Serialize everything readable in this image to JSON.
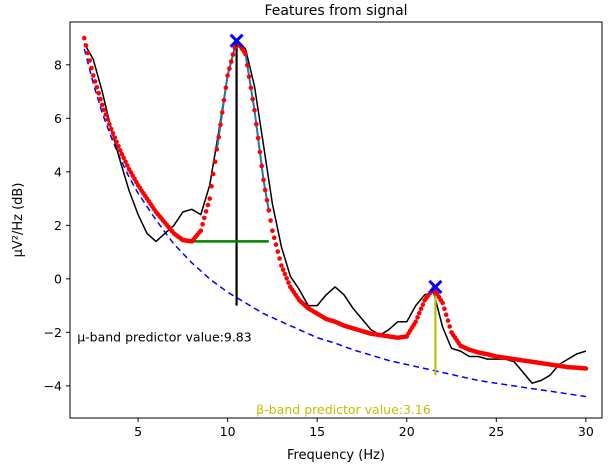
{
  "chart_data": {
    "type": "line",
    "title": "Features from signal",
    "xlabel": "Frequency (Hz)",
    "ylabel": "μV²/Hz (dB)",
    "xlim": [
      1.2,
      30.9
    ],
    "ylim": [
      -5.2,
      9.6
    ],
    "xticks": [
      5,
      10,
      15,
      20,
      25,
      30
    ],
    "yticks": [
      -4,
      -2,
      0,
      2,
      4,
      6,
      8
    ],
    "grid": false,
    "series": [
      {
        "role": "measured-spectrum",
        "color": "#000000",
        "x": [
          2.0,
          2.5,
          3.0,
          3.5,
          4.0,
          4.5,
          5.0,
          5.5,
          6.0,
          6.5,
          7.0,
          7.5,
          8.0,
          8.5,
          9.0,
          9.5,
          10.0,
          10.5,
          11.0,
          11.5,
          12.0,
          12.5,
          13.0,
          13.5,
          14.0,
          14.5,
          15.0,
          15.5,
          16.0,
          16.5,
          17.0,
          17.5,
          18.0,
          18.5,
          19.0,
          19.5,
          20.0,
          20.5,
          21.0,
          21.5,
          22.0,
          22.5,
          23.0,
          23.5,
          24.0,
          24.5,
          25.0,
          25.5,
          26.0,
          26.5,
          27.0,
          27.5,
          28.0,
          28.5,
          29.0,
          29.5,
          30.0
        ],
        "values": [
          8.8,
          8.2,
          7.0,
          5.6,
          4.4,
          3.3,
          2.4,
          1.7,
          1.4,
          1.7,
          2.0,
          2.5,
          2.6,
          2.4,
          3.5,
          5.5,
          7.6,
          8.9,
          8.6,
          7.2,
          5.0,
          2.8,
          1.2,
          0.1,
          -0.4,
          -1.0,
          -1.0,
          -0.6,
          -0.3,
          -0.6,
          -1.1,
          -1.5,
          -1.9,
          -2.1,
          -1.9,
          -1.6,
          -1.6,
          -1.0,
          -0.6,
          -0.5,
          -1.8,
          -2.6,
          -2.7,
          -2.9,
          -2.9,
          -3.0,
          -3.0,
          -3.0,
          -3.1,
          -3.5,
          -3.9,
          -3.8,
          -3.6,
          -3.2,
          -3.0,
          -2.8,
          -2.7
        ]
      },
      {
        "role": "fitted-model",
        "color": "#ff0000",
        "x": [
          2.0,
          2.5,
          3.0,
          3.5,
          4.0,
          4.5,
          5.0,
          5.5,
          6.0,
          6.5,
          7.0,
          7.5,
          8.0,
          8.5,
          9.0,
          9.5,
          10.0,
          10.5,
          11.0,
          11.5,
          12.0,
          12.5,
          13.0,
          13.5,
          14.0,
          14.5,
          15.0,
          15.5,
          16.0,
          16.5,
          17.0,
          17.5,
          18.0,
          18.5,
          19.0,
          19.5,
          20.0,
          20.5,
          21.0,
          21.5,
          22.0,
          22.5,
          23.0,
          23.5,
          24.0,
          24.5,
          25.0,
          25.5,
          26.0,
          26.5,
          27.0,
          27.5,
          28.0,
          28.5,
          29.0,
          29.5,
          30.0
        ],
        "values": [
          9.0,
          7.6,
          6.5,
          5.6,
          4.8,
          4.1,
          3.5,
          3.0,
          2.5,
          2.1,
          1.7,
          1.45,
          1.4,
          1.8,
          3.0,
          5.3,
          7.6,
          8.9,
          8.4,
          6.3,
          3.7,
          1.8,
          0.5,
          -0.3,
          -0.8,
          -1.1,
          -1.3,
          -1.5,
          -1.6,
          -1.75,
          -1.85,
          -1.95,
          -2.05,
          -2.1,
          -2.15,
          -2.2,
          -2.15,
          -1.6,
          -0.8,
          -0.35,
          -0.9,
          -2.0,
          -2.5,
          -2.65,
          -2.75,
          -2.82,
          -2.9,
          -2.95,
          -3.0,
          -3.05,
          -3.1,
          -3.15,
          -3.2,
          -3.25,
          -3.3,
          -3.32,
          -3.35
        ]
      },
      {
        "role": "aperiodic-fit",
        "color": "#0000ff",
        "style": "dashed",
        "x": [
          2.0,
          2.5,
          3.0,
          3.5,
          4.0,
          4.5,
          5.0,
          6.0,
          7.0,
          8.0,
          9.0,
          10.0,
          11.0,
          12.0,
          13.0,
          14.0,
          15.0,
          16.0,
          17.0,
          18.0,
          19.0,
          20.0,
          21.0,
          22.0,
          23.0,
          24.0,
          25.0,
          26.0,
          27.0,
          28.0,
          29.0,
          30.0
        ],
        "values": [
          8.6,
          7.3,
          6.2,
          5.3,
          4.5,
          3.8,
          3.2,
          2.2,
          1.3,
          0.6,
          0.0,
          -0.5,
          -0.9,
          -1.3,
          -1.6,
          -1.9,
          -2.2,
          -2.4,
          -2.65,
          -2.85,
          -3.05,
          -3.2,
          -3.35,
          -3.5,
          -3.65,
          -3.8,
          -3.9,
          -4.0,
          -4.1,
          -4.2,
          -4.3,
          -4.4
        ]
      }
    ],
    "peaks": [
      {
        "x": 10.5,
        "y": 8.9,
        "marker": "x",
        "color": "#0000ff"
      },
      {
        "x": 21.6,
        "y": -0.3,
        "marker": "x",
        "color": "#0000ff"
      }
    ],
    "vertical_lines": [
      {
        "x": 10.5,
        "y_from": -1.0,
        "y_to": 8.9,
        "color": "#000000"
      },
      {
        "x": 21.6,
        "y_from": -3.6,
        "y_to": -0.3,
        "color": "#bfbf00"
      }
    ],
    "horizontal_lines": [
      {
        "y": 1.4,
        "x_from": 7.8,
        "x_to": 12.3,
        "color": "#008000"
      }
    ],
    "annotations": [
      {
        "text": "μ-band predictor value:9.83",
        "x": 1.6,
        "y": -2.2,
        "color": "#000000"
      },
      {
        "text": "β-band predictor value:3.16",
        "x": 11.6,
        "y": -4.9,
        "color": "#bfbf00"
      }
    ]
  }
}
